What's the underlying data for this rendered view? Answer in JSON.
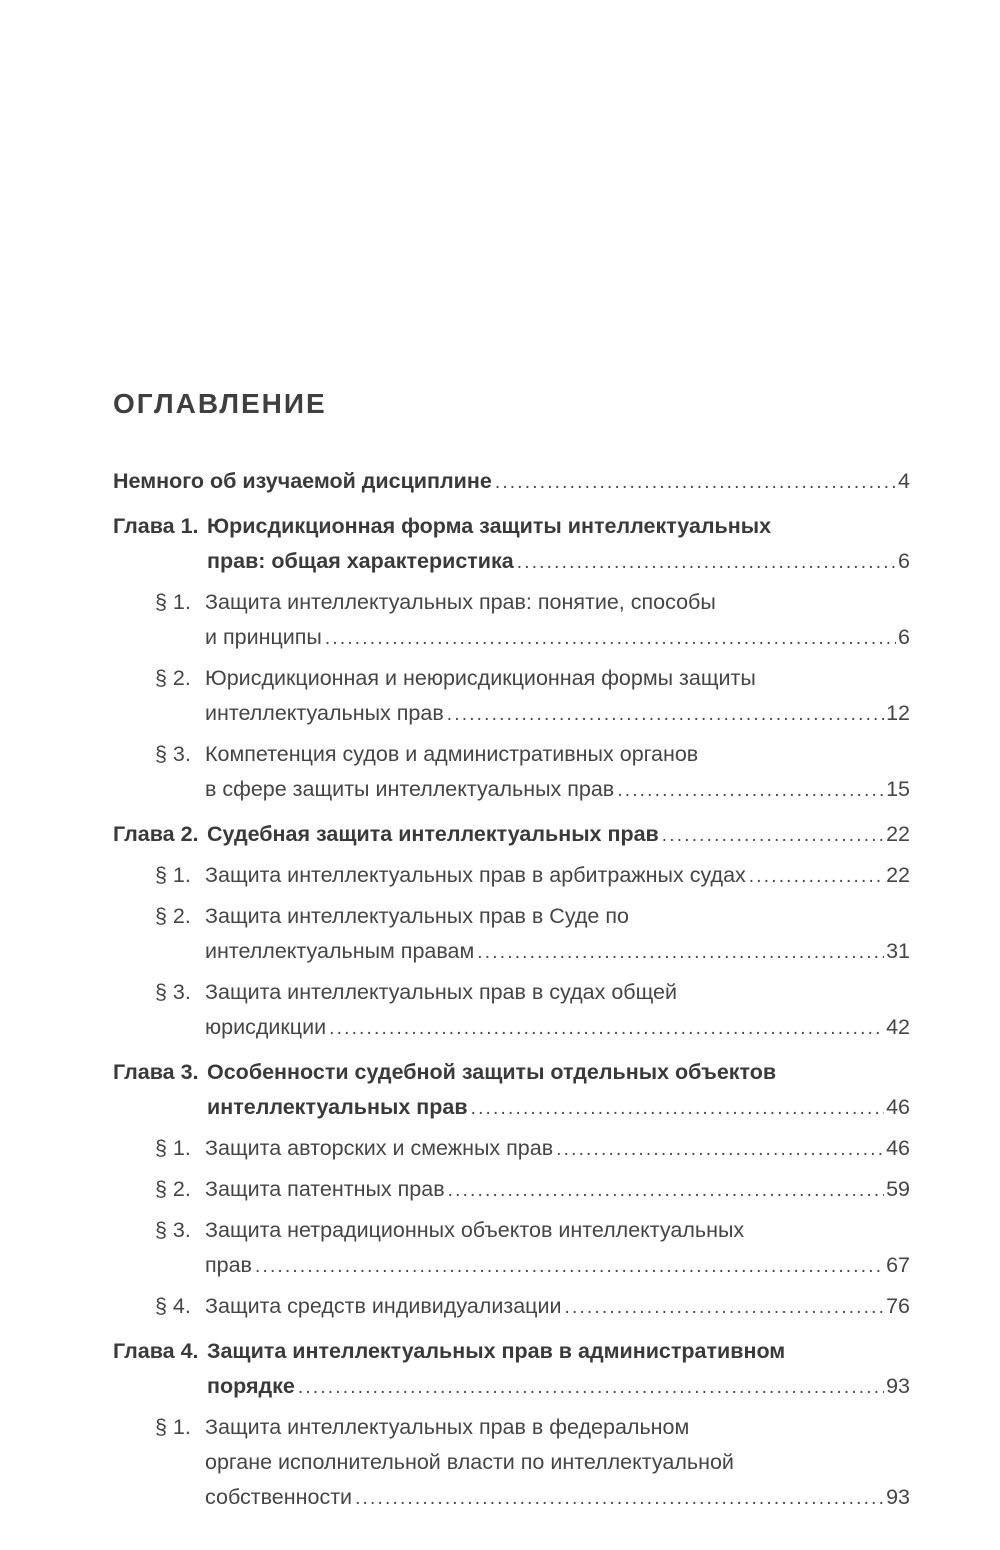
{
  "page_title": "ОГЛАВЛЕНИЕ",
  "colors": {
    "background": "#ffffff",
    "text": "#454545",
    "bold_text": "#3a3a3a",
    "leader_dots": "#4a4a4a"
  },
  "toc": {
    "entries": [
      {
        "kind": "intro",
        "label": "",
        "lines": [
          "Немного об изучаемой дисциплине"
        ],
        "page": "4"
      },
      {
        "kind": "chapter",
        "label": "Глава 1.",
        "lines": [
          "Юрисдикционная форма защиты интеллектуальных",
          "прав: общая характеристика"
        ],
        "page": "6"
      },
      {
        "kind": "section",
        "label": "§ 1.",
        "lines": [
          "Защита интеллектуальных прав: понятие, способы",
          "и принципы"
        ],
        "page": "6"
      },
      {
        "kind": "section",
        "label": "§ 2.",
        "lines": [
          "Юрисдикционная и неюрисдикционная формы защиты",
          "интеллектуальных прав"
        ],
        "page": "12"
      },
      {
        "kind": "section",
        "label": "§ 3.",
        "lines": [
          "Компетенция судов и административных органов",
          "в сфере защиты интеллектуальных прав"
        ],
        "page": "15"
      },
      {
        "kind": "chapter",
        "label": "Глава 2.",
        "lines": [
          "Судебная защита интеллектуальных прав"
        ],
        "page": "22"
      },
      {
        "kind": "section",
        "label": "§ 1.",
        "lines": [
          "Защита интеллектуальных прав в арбитражных судах"
        ],
        "page": "22"
      },
      {
        "kind": "section",
        "label": "§ 2.",
        "lines": [
          "Защита интеллектуальных прав в Суде по",
          "интеллектуальным правам"
        ],
        "page": "31"
      },
      {
        "kind": "section",
        "label": "§ 3.",
        "lines": [
          "Защита интеллектуальных прав в судах общей",
          "юрисдикции"
        ],
        "page": "42"
      },
      {
        "kind": "chapter",
        "label": "Глава 3.",
        "lines": [
          "Особенности судебной защиты отдельных объектов",
          "интеллектуальных прав"
        ],
        "page": "46"
      },
      {
        "kind": "section",
        "label": "§ 1.",
        "lines": [
          "Защита авторских и смежных прав"
        ],
        "page": "46"
      },
      {
        "kind": "section",
        "label": "§ 2.",
        "lines": [
          "Защита патентных прав"
        ],
        "page": "59"
      },
      {
        "kind": "section",
        "label": "§ 3.",
        "lines": [
          "Защита нетрадиционных объектов интеллектуальных",
          "прав"
        ],
        "page": "67"
      },
      {
        "kind": "section",
        "label": "§ 4.",
        "lines": [
          "Защита средств индивидуализации"
        ],
        "page": "76"
      },
      {
        "kind": "chapter",
        "label": "Глава 4.",
        "lines": [
          "Защита интеллектуальных прав в административном",
          "порядке"
        ],
        "page": "93"
      },
      {
        "kind": "section",
        "label": "§ 1.",
        "lines": [
          "Защита интеллектуальных прав в федеральном",
          "органе исполнительной власти по интеллектуальной",
          "собственности"
        ],
        "page": "93"
      }
    ]
  }
}
